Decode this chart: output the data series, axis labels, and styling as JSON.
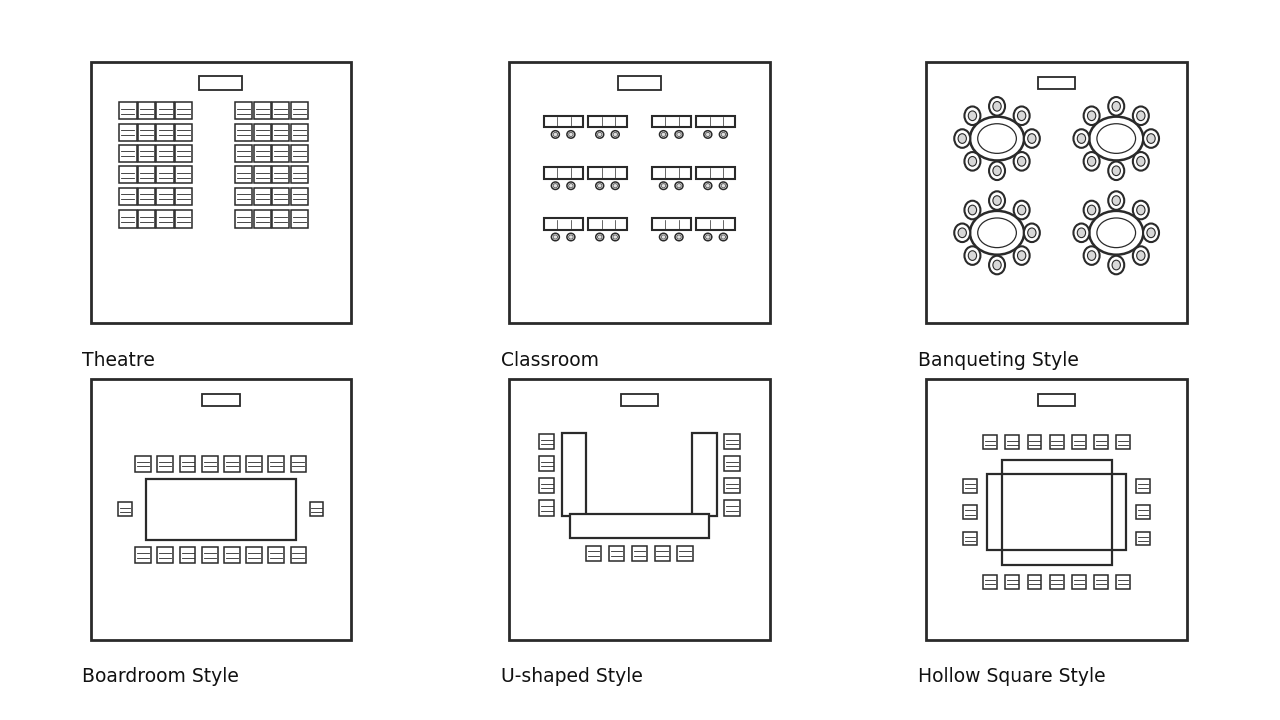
{
  "bg_color": "#ffffff",
  "ec": "#2a2a2a",
  "fc": "#ffffff",
  "labels": [
    "Theatre",
    "Classroom",
    "Banqueting Style",
    "Boardroom Style",
    "U-shaped Style",
    "Hollow Square Style"
  ],
  "label_fontsize": 13.5
}
